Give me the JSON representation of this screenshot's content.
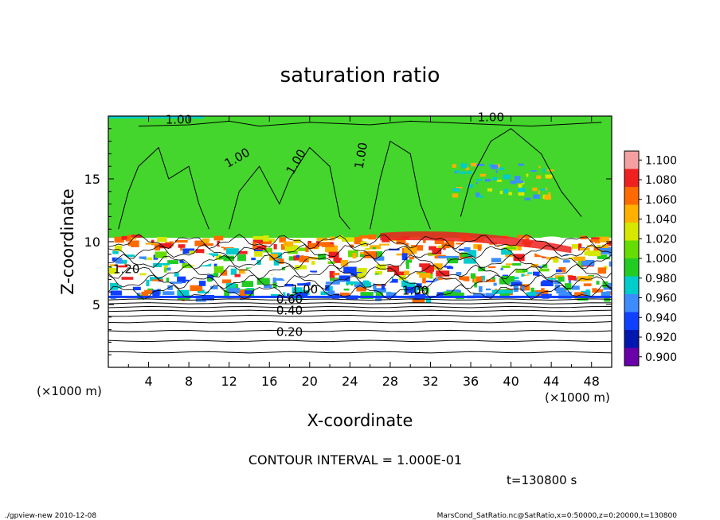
{
  "chart_data": {
    "type": "heatmap",
    "title": "saturation ratio",
    "xlabel": "X-coordinate",
    "ylabel": "Z-coordinate",
    "x_unit": "(×1000 m)",
    "y_unit": "(×1000 m)",
    "xlim": [
      0,
      50
    ],
    "ylim": [
      0,
      20
    ],
    "x_ticks": [
      4,
      8,
      12,
      16,
      20,
      24,
      28,
      32,
      36,
      40,
      44,
      48
    ],
    "y_ticks": [
      5,
      10,
      15
    ],
    "contour_interval": "CONTOUR INTERVAL = 1.000E-01",
    "time_label": "t=130800 s",
    "contour_labels": [
      "1.00",
      "1.00",
      "1.00",
      "1.00",
      "1.00",
      "1.20",
      "1.00",
      "1.00",
      "0.60",
      "0.40",
      "0.20"
    ],
    "background_contour_heights": [
      1.2,
      2.1,
      2.9,
      3.6,
      4.1,
      4.5,
      4.8,
      5.1,
      5.4
    ],
    "colorbar": {
      "levels": [
        "1.100",
        "1.080",
        "1.060",
        "1.040",
        "1.020",
        "1.000",
        "0.980",
        "0.960",
        "0.940",
        "0.920",
        "0.900"
      ],
      "colors": [
        "#f5a0a0",
        "#ee2020",
        "#ff6a00",
        "#ffb000",
        "#d6e800",
        "#66dd00",
        "#22cc22",
        "#00cccc",
        "#3d8cff",
        "#1040ff",
        "#0018b0",
        "#6a00aa"
      ]
    },
    "grid": false,
    "legend": "right colorbar"
  },
  "footer": {
    "left": "./gpview-new   2010-12-08",
    "right": "MarsCond_SatRatio.nc@SatRatio,x=0:50000,z=0:20000,t=130800"
  }
}
